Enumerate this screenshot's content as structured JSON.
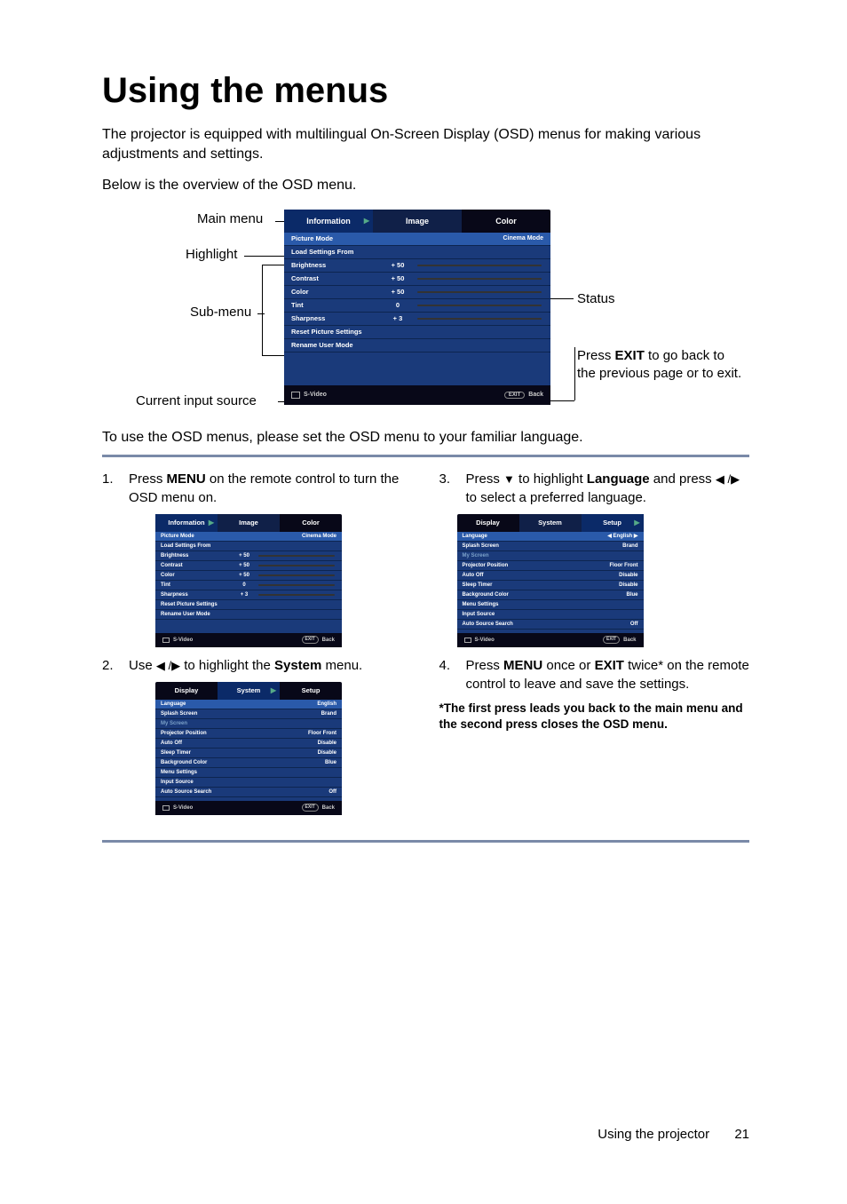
{
  "title": "Using the menus",
  "intro": "The projector is equipped with multilingual On-Screen Display (OSD) menus for making various adjustments and settings.",
  "overview_caption": "Below is the overview of the OSD menu.",
  "overview_labels": {
    "main_menu": "Main menu",
    "highlight": "Highlight",
    "sub_menu": "Sub-menu",
    "current_input": "Current input source",
    "status": "Status",
    "press_exit_pre": "Press ",
    "press_exit_b": "EXIT",
    "press_exit_post": " to go back to the previous page or to exit."
  },
  "osd_image": {
    "tabs": [
      "Information",
      "Image",
      "Color"
    ],
    "active_tab": 0,
    "rows": [
      {
        "label": "Picture Mode",
        "value_right": "Cinema Mode",
        "hl": true
      },
      {
        "label": "Load Settings From"
      },
      {
        "label": "Brightness",
        "value": "+ 50",
        "slider": true
      },
      {
        "label": "Contrast",
        "value": "+ 50",
        "slider": true
      },
      {
        "label": "Color",
        "value": "+ 50",
        "slider": true
      },
      {
        "label": "Tint",
        "value": "0",
        "slider": true
      },
      {
        "label": "Sharpness",
        "value": "+ 3",
        "slider": true
      },
      {
        "label": "Reset Picture Settings"
      },
      {
        "label": "Rename User Mode"
      }
    ],
    "footer_src": "S-Video",
    "footer_exit": "EXIT",
    "footer_back": "Back"
  },
  "osd_system": {
    "tabs": [
      "Display",
      "System",
      "Setup"
    ],
    "active_tab": 1,
    "rows": [
      {
        "label": "Language",
        "value_right": "English",
        "hl": true
      },
      {
        "label": "Splash Screen",
        "value_right": "Brand"
      },
      {
        "label": "My Screen",
        "dim": true
      },
      {
        "label": "Projector Position",
        "value_right": "Floor Front"
      },
      {
        "label": "Auto Off",
        "value_right": "Disable"
      },
      {
        "label": "Sleep Timer",
        "value_right": "Disable"
      },
      {
        "label": "Background Color",
        "value_right": "Blue"
      },
      {
        "label": "Menu Settings"
      },
      {
        "label": "Input Source"
      },
      {
        "label": "Auto Source Search",
        "value_right": "Off"
      }
    ],
    "footer_src": "S-Video",
    "footer_exit": "EXIT",
    "footer_back": "Back"
  },
  "osd_setup": {
    "tabs": [
      "Display",
      "System",
      "Setup"
    ],
    "active_tab": 2,
    "rows": [
      {
        "label": "Language",
        "value_right": "English",
        "hl": true,
        "arrows": true
      },
      {
        "label": "Splash Screen",
        "value_right": "Brand"
      },
      {
        "label": "My Screen",
        "dim": true
      },
      {
        "label": "Projector Position",
        "value_right": "Floor Front"
      },
      {
        "label": "Auto Off",
        "value_right": "Disable"
      },
      {
        "label": "Sleep Timer",
        "value_right": "Disable"
      },
      {
        "label": "Background Color",
        "value_right": "Blue"
      },
      {
        "label": "Menu Settings"
      },
      {
        "label": "Input Source"
      },
      {
        "label": "Auto Source Search",
        "value_right": "Off"
      }
    ],
    "footer_src": "S-Video",
    "footer_exit": "EXIT",
    "footer_back": "Back"
  },
  "mid_text": "To use the OSD menus, please set the OSD menu to your familiar language.",
  "steps": {
    "s1_num": "1.",
    "s1_pre": "Press ",
    "s1_b": "MENU",
    "s1_post": " on the remote control to turn the OSD menu on.",
    "s2_num": "2.",
    "s2_pre": "Use ",
    "s2_mid": " to highlight the ",
    "s2_b": "System",
    "s2_post": " menu.",
    "s3_num": "3.",
    "s3_pre": "Press ",
    "s3_mid": " to highlight ",
    "s3_b": "Language",
    "s3_mid2": " and press ",
    "s3_post": " to select a preferred language.",
    "s4_num": "4.",
    "s4_pre": "Press ",
    "s4_b": "MENU",
    "s4_mid": " once or ",
    "s4_b2": "EXIT",
    "s4_post": " twice* on the remote control to leave and save the settings."
  },
  "note": "*The first press leads you back to the main menu and the second press closes the OSD menu.",
  "footer_text": "Using the projector",
  "page_num": "21"
}
